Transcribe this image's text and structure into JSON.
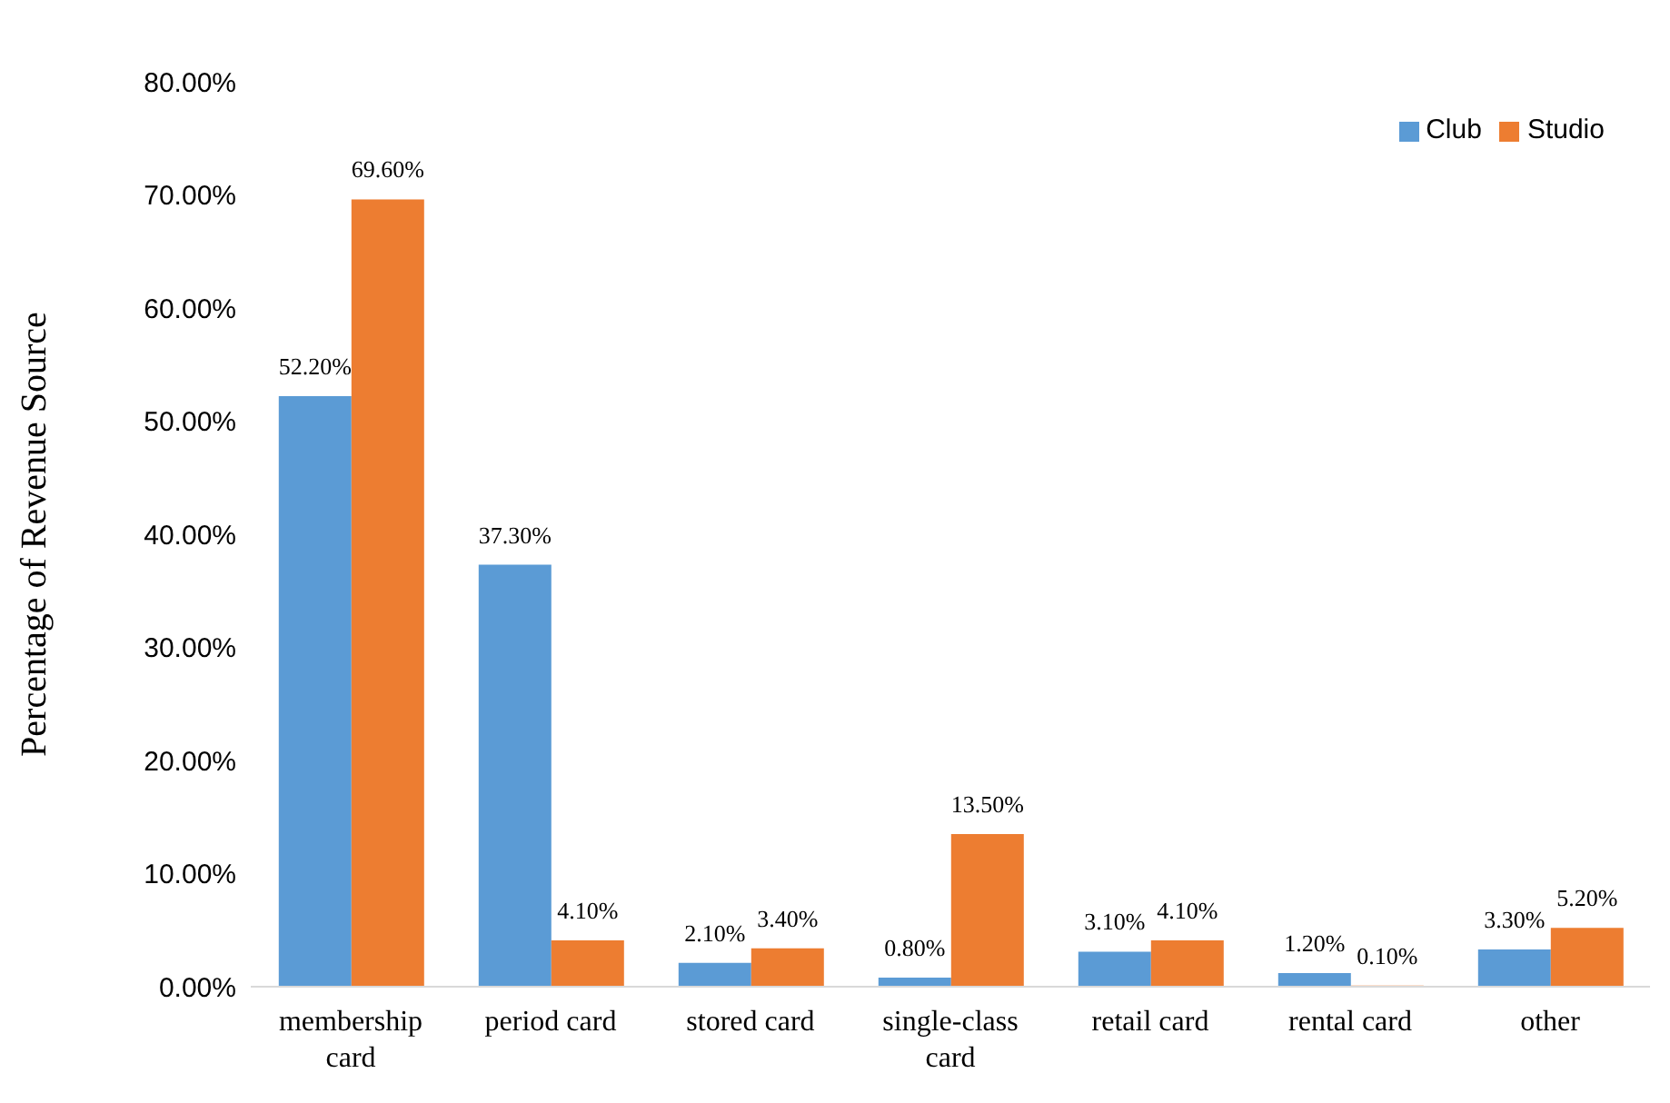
{
  "chart_data": {
    "type": "bar",
    "ylabel": "Percentage of Revenue Source",
    "categories": [
      "membership card",
      "period card",
      "stored card",
      "single-class card",
      "retail card",
      "rental card",
      "other"
    ],
    "series": [
      {
        "name": "Club",
        "color": "#5b9bd5",
        "values": [
          52.2,
          37.3,
          2.1,
          0.8,
          3.1,
          1.2,
          3.3
        ],
        "value_labels": [
          "52.20%",
          "37.30%",
          "2.10%",
          "0.80%",
          "3.10%",
          "1.20%",
          "3.30%"
        ]
      },
      {
        "name": "Studio",
        "color": "#ed7d31",
        "values": [
          69.6,
          4.1,
          3.4,
          13.5,
          4.1,
          0.1,
          5.2
        ],
        "value_labels": [
          "69.60%",
          "4.10%",
          "3.40%",
          "13.50%",
          "4.10%",
          "0.10%",
          "5.20%"
        ]
      }
    ],
    "ylim": [
      0,
      80
    ],
    "yticks": [
      {
        "value": 0,
        "label": "0.00%"
      },
      {
        "value": 10,
        "label": "10.00%"
      },
      {
        "value": 20,
        "label": "20.00%"
      },
      {
        "value": 30,
        "label": "30.00%"
      },
      {
        "value": 40,
        "label": "40.00%"
      },
      {
        "value": 50,
        "label": "50.00%"
      },
      {
        "value": 60,
        "label": "60.00%"
      },
      {
        "value": 70,
        "label": "70.00%"
      },
      {
        "value": 80,
        "label": "80.00%"
      }
    ],
    "grid": false,
    "legend": "top right"
  }
}
